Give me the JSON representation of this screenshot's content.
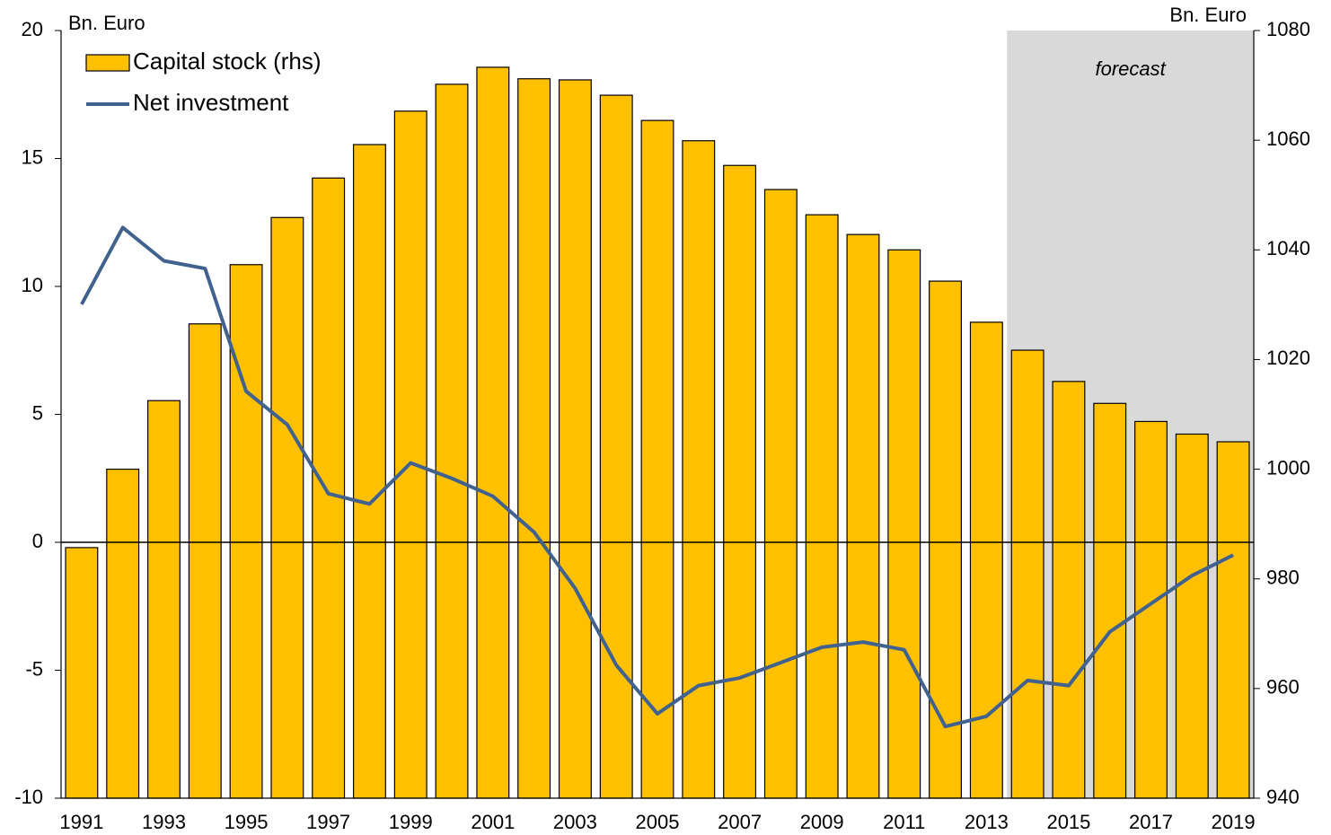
{
  "chart_data": {
    "type": "bar_line",
    "x": [
      1991,
      1992,
      1993,
      1994,
      1995,
      1996,
      1997,
      1998,
      1999,
      2000,
      2001,
      2002,
      2003,
      2004,
      2005,
      2006,
      2007,
      2008,
      2009,
      2010,
      2011,
      2012,
      2013,
      2014,
      2015,
      2016,
      2017,
      2018,
      2019
    ],
    "series": [
      {
        "name": "Capital stock (rhs)",
        "type": "bar",
        "axis": "y2",
        "color": "#ffc000",
        "values": [
          985.7,
          1000,
          1012.5,
          1026.5,
          1037.3,
          1045.9,
          1053.1,
          1059.2,
          1065.3,
          1070.2,
          1073.3,
          1071.2,
          1071.0,
          1068.2,
          1063.6,
          1059.9,
          1055.4,
          1051.0,
          1046.4,
          1042.8,
          1040.0,
          1034.3,
          1026.8,
          1021.7,
          1016.0,
          1012.0,
          1008.7,
          1006.4,
          1005.0
        ]
      },
      {
        "name": "Net investment",
        "type": "line",
        "color": "#41628e",
        "values": [
          9.3,
          12.3,
          11.0,
          10.7,
          5.9,
          4.6,
          1.9,
          1.5,
          3.1,
          2.5,
          1.8,
          0.4,
          -1.8,
          -4.8,
          -6.7,
          -5.6,
          -5.3,
          -4.7,
          -4.1,
          -3.9,
          -4.2,
          -7.2,
          -6.8,
          -5.4,
          -5.6,
          -3.5,
          -2.4,
          -1.3,
          -0.5
        ]
      }
    ],
    "ylabel": "Bn. Euro",
    "y2label": "Bn. Euro",
    "xlim": [
      1990.5,
      2019.5
    ],
    "xticks": [
      1991,
      1993,
      1995,
      1997,
      1999,
      2001,
      2003,
      2005,
      2007,
      2009,
      2011,
      2013,
      2015,
      2017,
      2019
    ],
    "ylim": [
      -10,
      20
    ],
    "yticks": [
      -10,
      -5,
      0,
      5,
      10,
      15,
      20
    ],
    "y2lim": [
      940,
      1080
    ],
    "y2ticks": [
      940,
      960,
      980,
      1000,
      1020,
      1040,
      1060,
      1080
    ],
    "shade": {
      "label": "forecast",
      "xlim": [
        2013.5,
        2019.5
      ],
      "color": "#d9d9d9"
    },
    "legend": "upper left"
  }
}
